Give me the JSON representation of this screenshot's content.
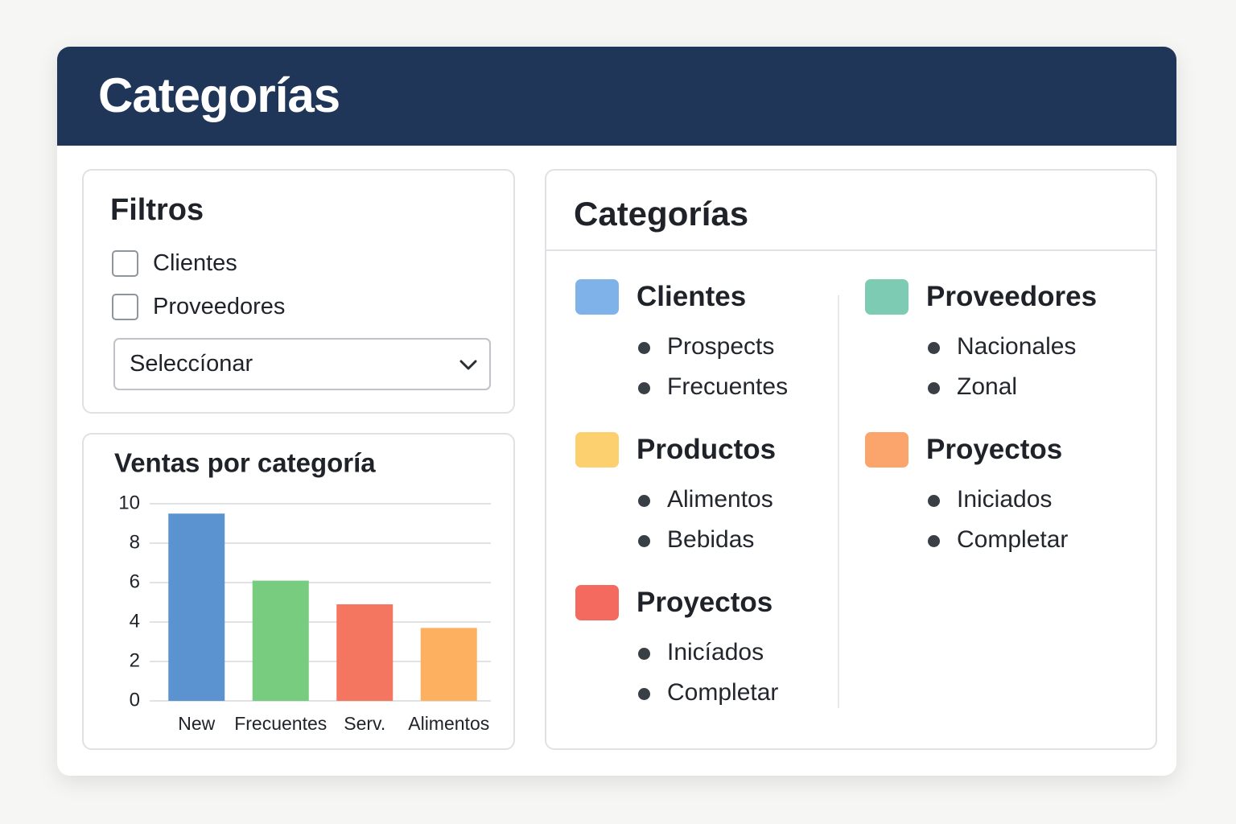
{
  "header": {
    "title": "Categorías"
  },
  "filters": {
    "title": "Filtros",
    "options": [
      "Clientes",
      "Proveedores"
    ],
    "select": "Seleccíonar"
  },
  "chart_data": {
    "type": "bar",
    "title": "Ventas por categoría",
    "categories": [
      "New",
      "Frecuentes",
      "Serv.",
      "Alimentos"
    ],
    "values": [
      9.5,
      6.1,
      4.9,
      3.7
    ],
    "colors": [
      "#5a93d0",
      "#78cc80",
      "#f47560",
      "#fdb060"
    ],
    "ylim": [
      0,
      10
    ],
    "yticks": [
      0,
      2,
      4,
      6,
      8,
      10
    ],
    "grid": true
  },
  "categories_panel": {
    "title": "Categorías",
    "columns": [
      [
        {
          "name": "Clientes",
          "color": "#80b2ea",
          "items": [
            "Prospects",
            "Frecuentes"
          ]
        },
        {
          "name": "Productos",
          "color": "#fdd06f",
          "items": [
            "Alimentos",
            "Bebidas"
          ]
        },
        {
          "name": "Proyectos",
          "color": "#f46a5e",
          "items": [
            "Inicíados",
            "Completar"
          ]
        }
      ],
      [
        {
          "name": "Proveedores",
          "color": "#7dcbb2",
          "items": [
            "Nacionales",
            "Zonal"
          ]
        },
        {
          "name": "Proyectos",
          "color": "#fba46c",
          "items": [
            "Iniciados",
            "Completar"
          ]
        }
      ]
    ]
  }
}
